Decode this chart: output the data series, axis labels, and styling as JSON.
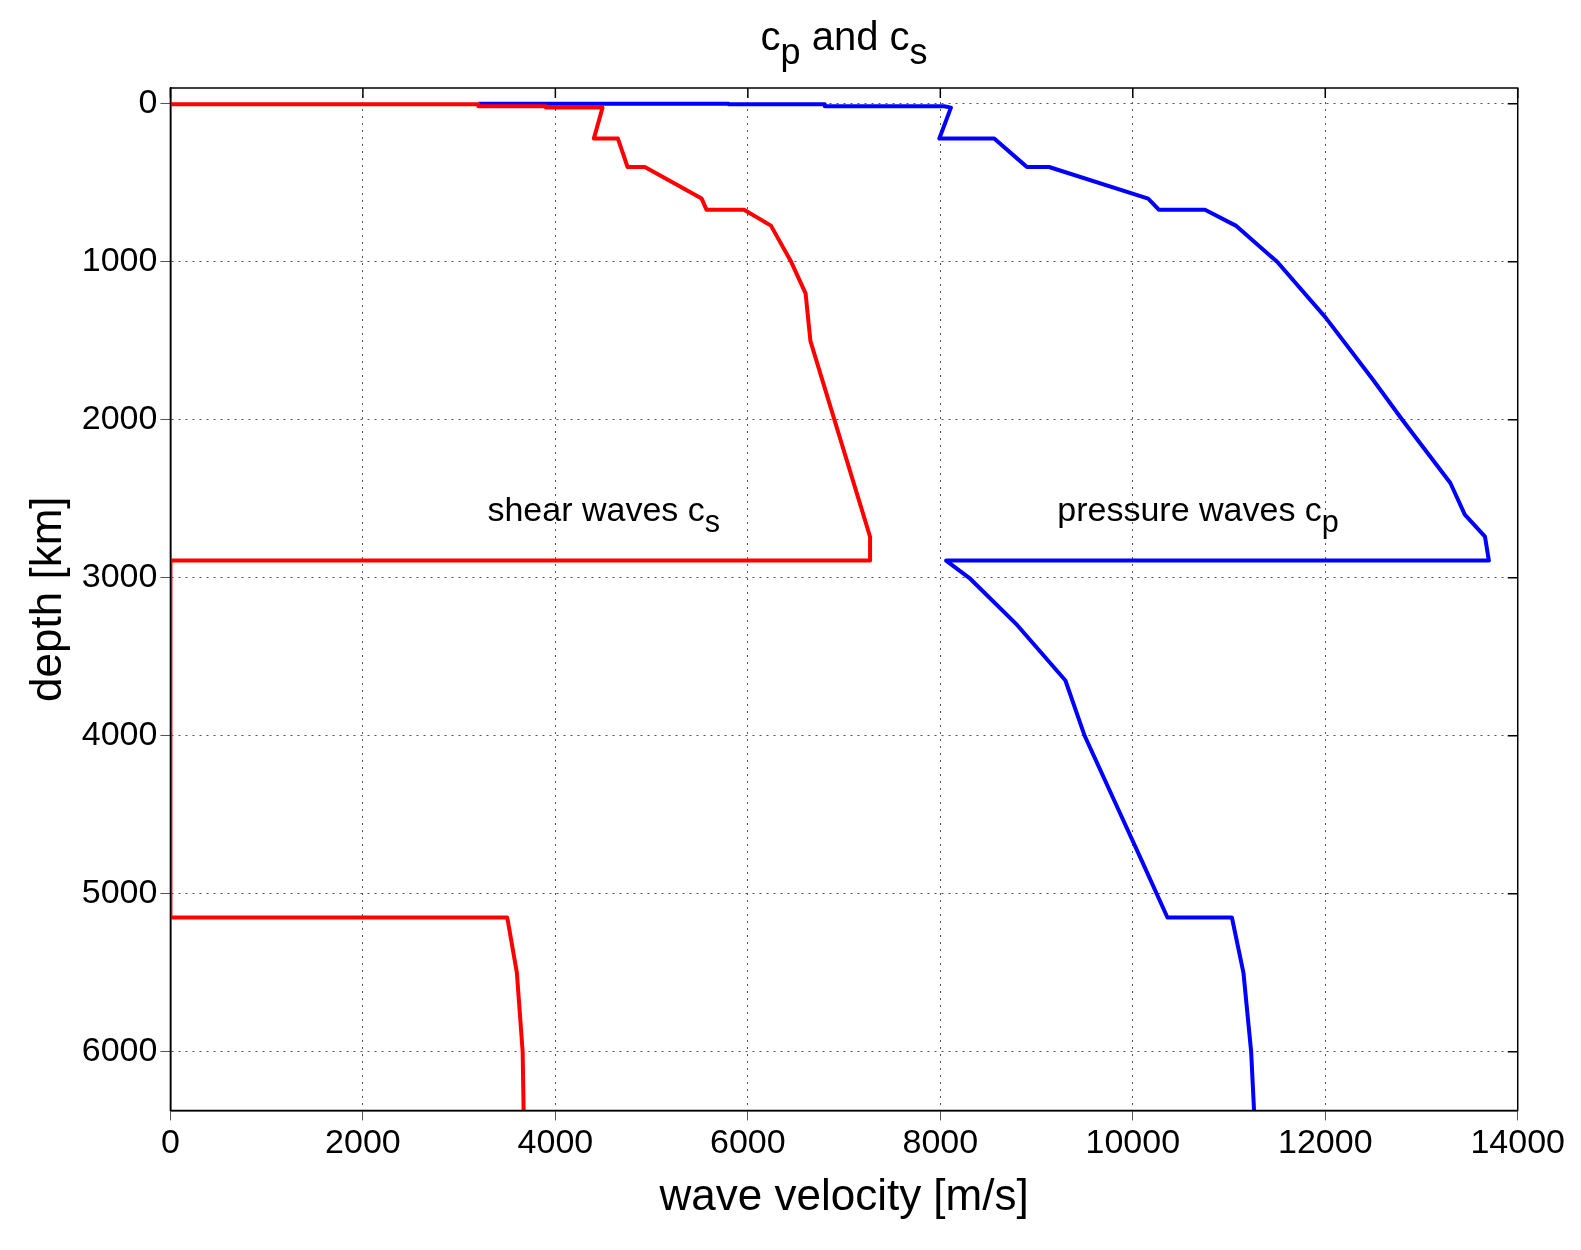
{
  "chart_data": {
    "type": "line",
    "title": "c$_{p}$ and c$_{s}$",
    "xlabel": "wave velocity [m/s]",
    "ylabel": "depth [km]",
    "xlim": [
      0,
      14000
    ],
    "xticks": [
      0,
      2000,
      4000,
      6000,
      8000,
      10000,
      12000,
      14000
    ],
    "ylim": [
      6371,
      -100
    ],
    "yticks": [
      0,
      1000,
      2000,
      3000,
      4000,
      5000,
      6000
    ],
    "grid": true,
    "line_style": "solid",
    "marker": "none",
    "legend": false,
    "series": [
      {
        "name": "shear waves c$_{s}$",
        "color": "#ff0000",
        "x": [
          0,
          0,
          3200,
          3200,
          3900,
          3900,
          4490,
          4400,
          4650,
          4750,
          4930,
          5520,
          5570,
          5960,
          6240,
          6450,
          6600,
          6650,
          6900,
          7150,
          7270,
          7270,
          0,
          0,
          3500,
          3600,
          3660,
          3670
        ],
        "values": [
          0,
          3,
          3,
          15,
          15,
          24,
          24,
          220,
          220,
          400,
          400,
          600,
          670,
          670,
          771,
          1000,
          1200,
          1500,
          2000,
          2500,
          2740,
          2891,
          2891,
          5150,
          5150,
          5500,
          6000,
          6371
        ]
      },
      {
        "name": "pressure waves c$_{p}$",
        "color": "#0000ff",
        "x": [
          3200,
          5800,
          5800,
          6800,
          6800,
          8040,
          8110,
          7990,
          8560,
          8900,
          9130,
          10160,
          10270,
          10750,
          11070,
          11500,
          12000,
          12500,
          12800,
          13300,
          13450,
          13660,
          13700,
          8060,
          8300,
          8800,
          9300,
          9500,
          9800,
          10100,
          10360,
          11030,
          11150,
          11230,
          11260
        ],
        "values": [
          0,
          0,
          3,
          3,
          15,
          15,
          24,
          220,
          220,
          400,
          400,
          600,
          670,
          670,
          771,
          1000,
          1350,
          1750,
          2000,
          2400,
          2600,
          2740,
          2891,
          2891,
          3000,
          3300,
          3650,
          4000,
          4400,
          4800,
          5150,
          5150,
          5500,
          6000,
          6371
        ]
      }
    ]
  }
}
